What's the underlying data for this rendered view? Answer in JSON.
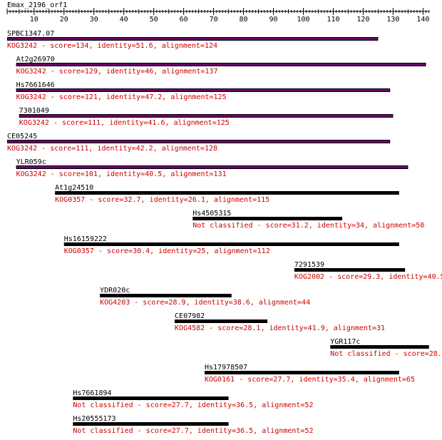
{
  "query": {
    "title": "Emax_2196_orf1"
  },
  "ruler": {
    "min": 1,
    "max": 142,
    "ticks": [
      10,
      20,
      30,
      40,
      50,
      60,
      70,
      80,
      90,
      100,
      110,
      120,
      130,
      140
    ]
  },
  "colors": {
    "bar_kog": "#6b006b",
    "bar_other": "#000000",
    "annotation": "#cc0000",
    "label": "#000000"
  },
  "hits": [
    {
      "name": "SPBC1347.07",
      "start": 1,
      "end": 125,
      "style": "kog",
      "annotation": "KOG3242 - score=134, identity=51.6, alignment=124"
    },
    {
      "name": "At2g26970",
      "start": 4,
      "end": 141,
      "style": "kog",
      "annotation": "KOG3242 - score=129, identity=46, alignment=137"
    },
    {
      "name": "Hs7661646",
      "start": 4,
      "end": 129,
      "style": "kog",
      "annotation": "KOG3242 - score=121, identity=47.2, alignment=125"
    },
    {
      "name": "7301049",
      "start": 5,
      "end": 130,
      "style": "kog",
      "annotation": "KOG3242 - score=111, identity=41.6, alignment=125"
    },
    {
      "name": "CE05245",
      "start": 1,
      "end": 129,
      "style": "kog",
      "annotation": "KOG3242 - score=111, identity=42.2, alignment=128"
    },
    {
      "name": "YLR059c",
      "start": 4,
      "end": 135,
      "style": "kog",
      "annotation": "KOG3242 - score=101, identity=40.5, alignment=131"
    },
    {
      "name": "At1g24510",
      "start": 17,
      "end": 132,
      "style": "other",
      "annotation": "KOG0357 - score=32.7, identity=26.1, alignment=115"
    },
    {
      "name": "Hs4505315",
      "start": 63,
      "end": 113,
      "style": "other",
      "annotation": "Not classified - score=31.2, identity=34, alignment=50"
    },
    {
      "name": "Hs16159222",
      "start": 20,
      "end": 132,
      "style": "other",
      "annotation": "KOG0357 - score=30.4, identity=25, alignment=112"
    },
    {
      "name": "7291539",
      "start": 97,
      "end": 134,
      "style": "other",
      "annotation": "KOG2002 - score=29.3, identity=40.5"
    },
    {
      "name": "YDR020c",
      "start": 32,
      "end": 76,
      "style": "other",
      "annotation": "KOG4203 - score=28.9, identity=38.6, alignment=44"
    },
    {
      "name": "CE07982",
      "start": 57,
      "end": 88,
      "style": "other",
      "annotation": "KOG4582 - score=28.1, identity=41.9, alignment=31"
    },
    {
      "name": "YGR117c",
      "start": 109,
      "end": 142,
      "style": "other",
      "annotation": "Not classified - score=28."
    },
    {
      "name": "Hs17978507",
      "start": 67,
      "end": 132,
      "style": "other",
      "annotation": "KOG0161 - score=27.7, identity=35.4, alignment=65"
    },
    {
      "name": "Hs7661894",
      "start": 23,
      "end": 75,
      "style": "other",
      "annotation": "Not classified - score=27.7, identity=36.5, alignment=52"
    },
    {
      "name": "Hs20555173",
      "start": 23,
      "end": 75,
      "style": "other",
      "annotation": "Not classified - score=27.7, identity=36.5, alignment=52"
    }
  ]
}
